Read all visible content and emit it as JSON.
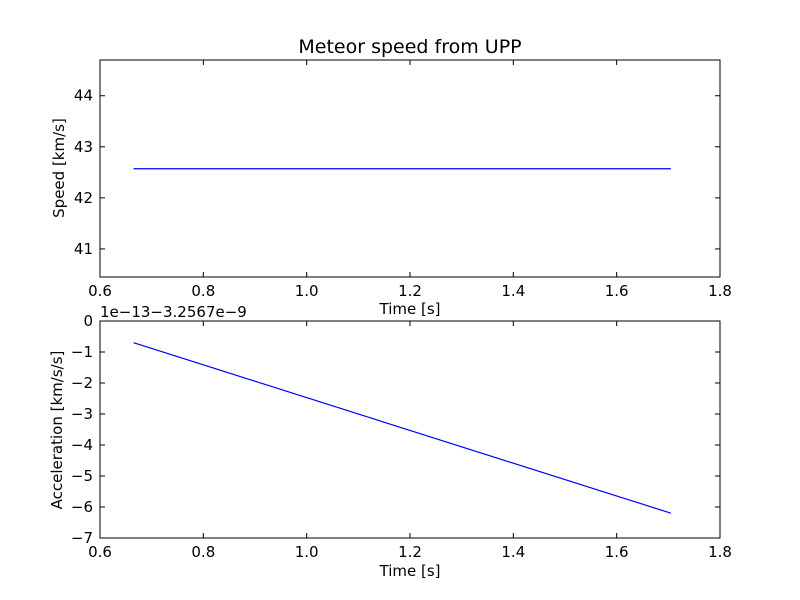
{
  "chart_data": [
    {
      "type": "line",
      "title": "Meteor speed from  UPP",
      "xlabel": "Time [s]",
      "ylabel": "Speed [km/s]",
      "xlim": [
        0.6,
        1.8
      ],
      "ylim": [
        40.45,
        44.7
      ],
      "xticks": [
        0.6,
        0.8,
        1.0,
        1.2,
        1.4,
        1.6,
        1.8
      ],
      "xtick_labels": [
        "0.6",
        "0.8",
        "1.0",
        "1.2",
        "1.4",
        "1.6",
        "1.8"
      ],
      "yticks": [
        41,
        42,
        43,
        44
      ],
      "ytick_labels": [
        "41",
        "42",
        "43",
        "44"
      ],
      "grid": false,
      "series": [
        {
          "x": [
            0.665,
            1.705
          ],
          "values": [
            42.57,
            42.57
          ],
          "color": "#0000ff"
        }
      ]
    },
    {
      "type": "line",
      "title": "",
      "xlabel": "Time [s]",
      "ylabel": "Acceleration [km/s/s]",
      "offset_label": "1e−13−3.2567e−9",
      "xlim": [
        0.6,
        1.8
      ],
      "ylim": [
        -7,
        0
      ],
      "xticks": [
        0.6,
        0.8,
        1.0,
        1.2,
        1.4,
        1.6,
        1.8
      ],
      "xtick_labels": [
        "0.6",
        "0.8",
        "1.0",
        "1.2",
        "1.4",
        "1.6",
        "1.8"
      ],
      "yticks": [
        -7,
        -6,
        -5,
        -4,
        -3,
        -2,
        -1,
        0
      ],
      "ytick_labels": [
        "−7",
        "−6",
        "−5",
        "−4",
        "−3",
        "−2",
        "−1",
        "0"
      ],
      "grid": false,
      "series": [
        {
          "x": [
            0.665,
            1.705
          ],
          "values": [
            -0.7,
            -6.2
          ],
          "color": "#0000ff"
        }
      ]
    }
  ]
}
